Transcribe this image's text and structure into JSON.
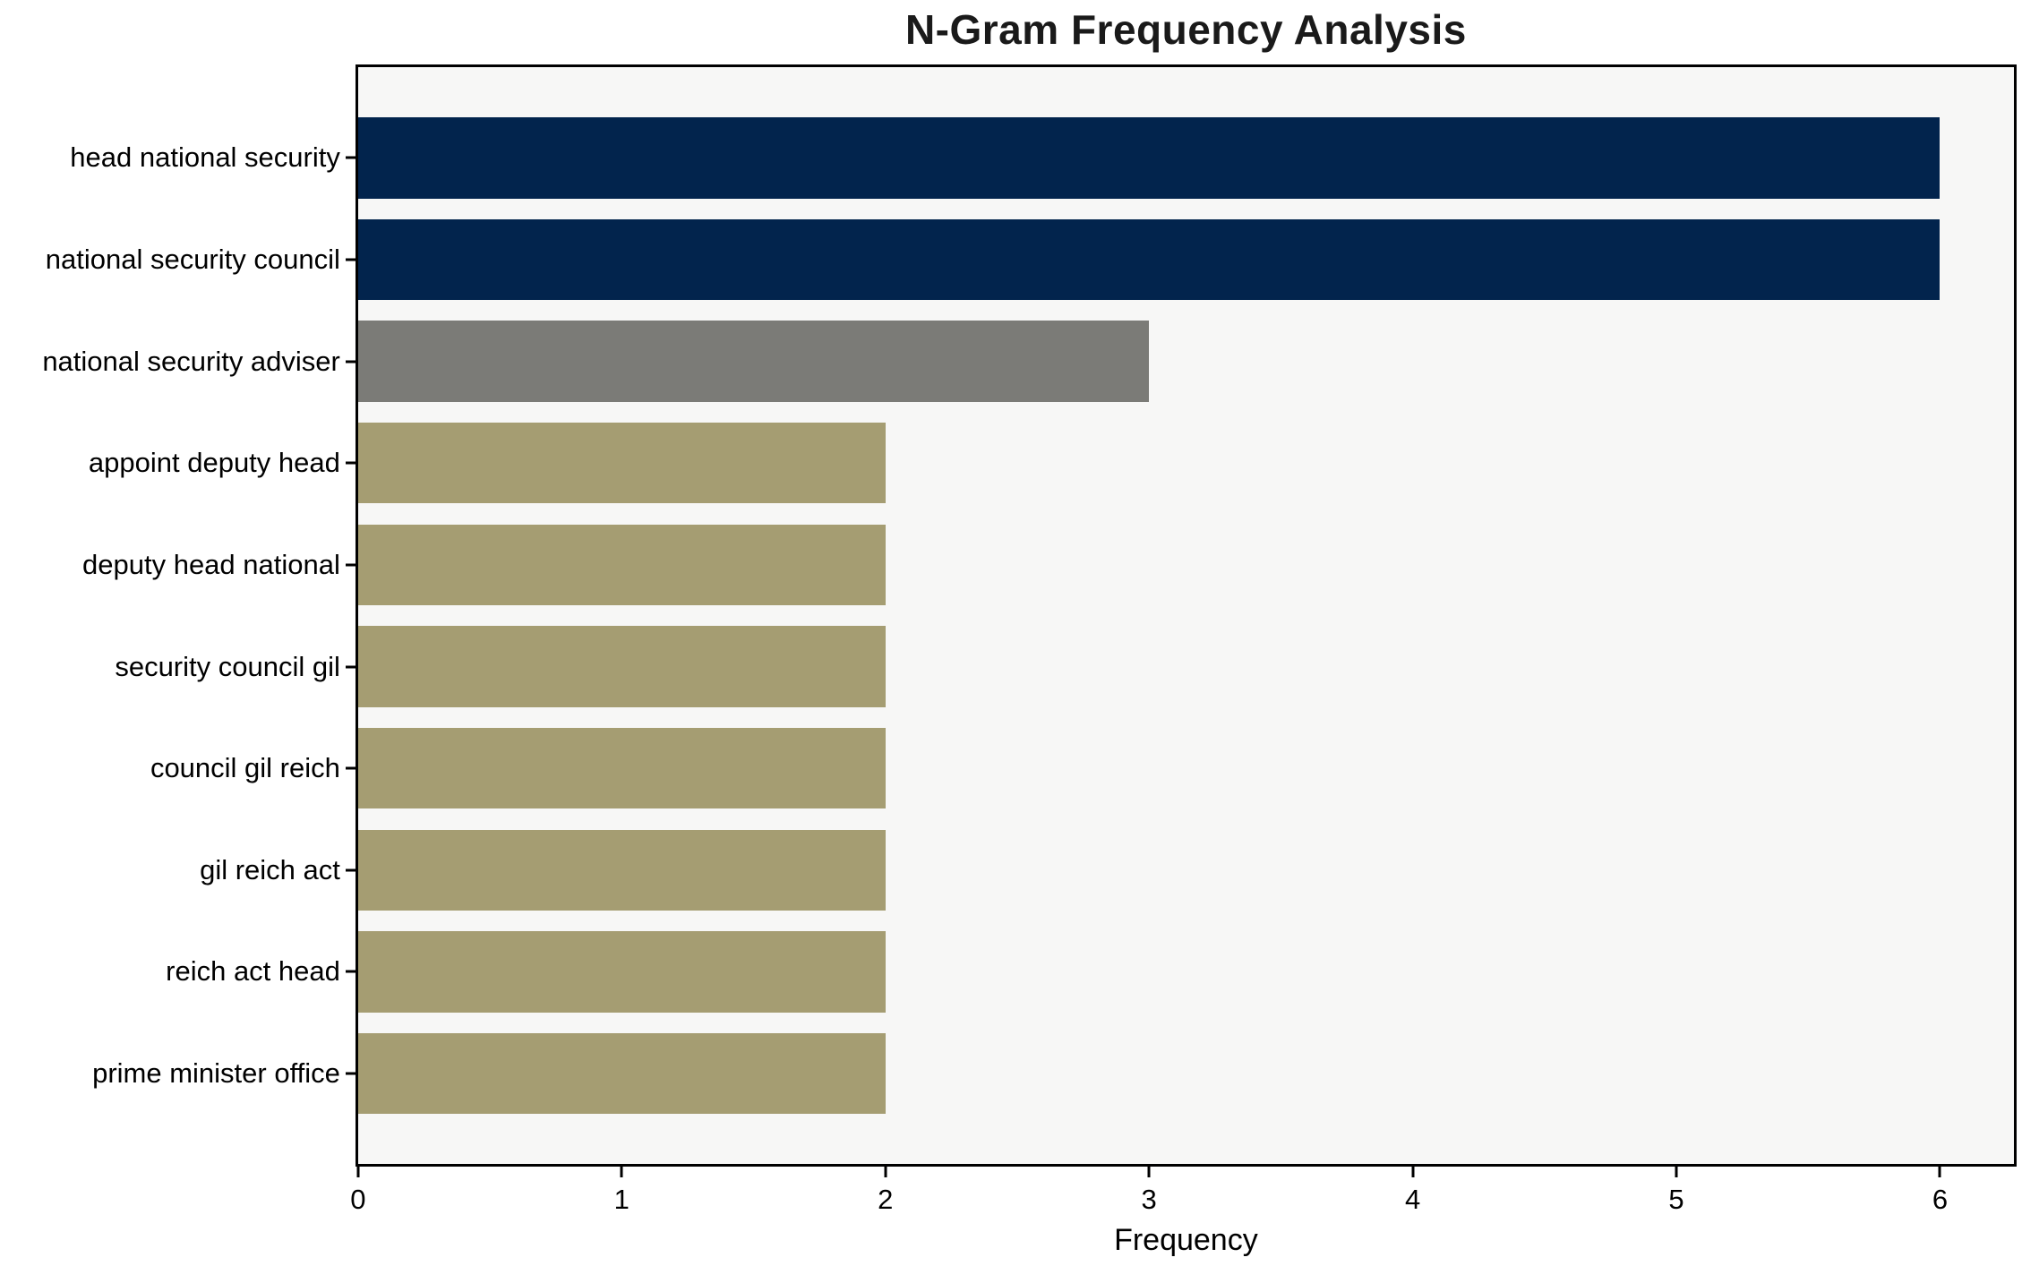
{
  "chart_data": {
    "type": "bar",
    "orientation": "horizontal",
    "title": "N-Gram Frequency Analysis",
    "xlabel": "Frequency",
    "ylabel": "",
    "categories": [
      "head national security",
      "national security council",
      "national security adviser",
      "appoint deputy head",
      "deputy head national",
      "security council gil",
      "council gil reich",
      "gil reich act",
      "reich act head",
      "prime minister office"
    ],
    "values": [
      6,
      6,
      3,
      2,
      2,
      2,
      2,
      2,
      2,
      2
    ],
    "bar_colors": [
      "#02244D",
      "#02244D",
      "#7B7B77",
      "#A59D72",
      "#A59D72",
      "#A59D72",
      "#A59D72",
      "#A59D72",
      "#A59D72",
      "#A59D72"
    ],
    "xticks": [
      0,
      1,
      2,
      3,
      4,
      5,
      6
    ],
    "xlim": [
      0,
      6.28
    ],
    "grid": false,
    "legend_position": "none",
    "plot_background": "#F7F7F6",
    "figure_background": "#FFFFFF",
    "axis_color": "#000000"
  }
}
